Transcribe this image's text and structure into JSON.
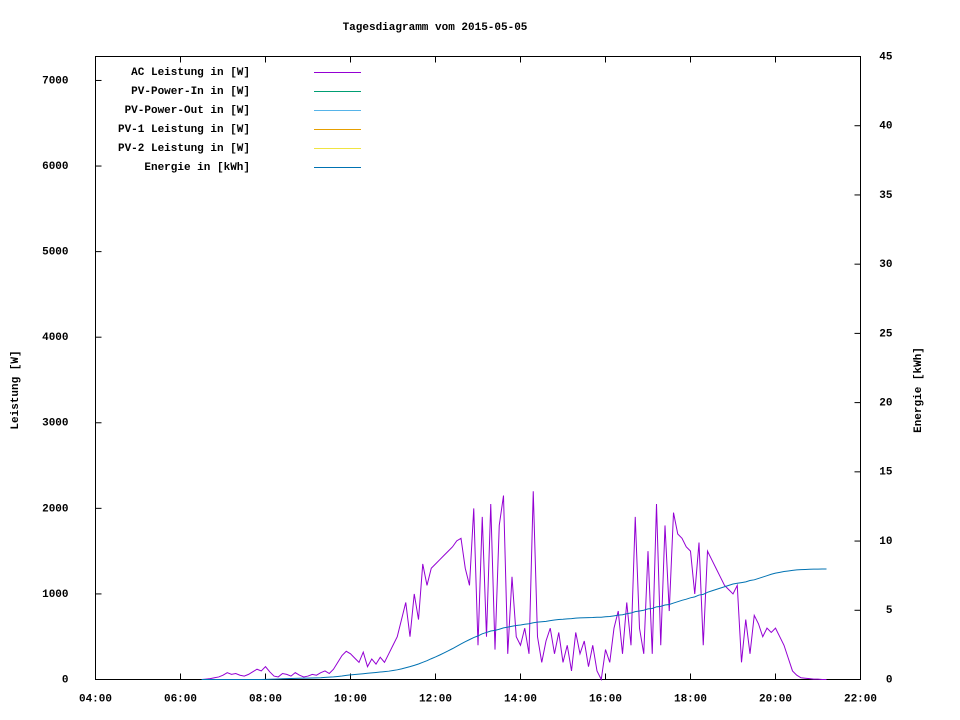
{
  "chart_data": {
    "type": "line",
    "title": "Tagesdiagramm vom 2015-05-05",
    "ylabel": "Leistung [W]",
    "y2label": "Energie [kWh]",
    "xlim": [
      4,
      22
    ],
    "xticks": [
      {
        "value": 4,
        "label": "04:00"
      },
      {
        "value": 6,
        "label": "06:00"
      },
      {
        "value": 8,
        "label": "08:00"
      },
      {
        "value": 10,
        "label": "10:00"
      },
      {
        "value": 12,
        "label": "12:00"
      },
      {
        "value": 14,
        "label": "14:00"
      },
      {
        "value": 16,
        "label": "16:00"
      },
      {
        "value": 18,
        "label": "18:00"
      },
      {
        "value": 20,
        "label": "20:00"
      },
      {
        "value": 22,
        "label": "22:00"
      }
    ],
    "ylim": [
      0,
      7280
    ],
    "yticks": [
      0,
      1000,
      2000,
      3000,
      4000,
      5000,
      6000,
      7000
    ],
    "y2lim": [
      0,
      45
    ],
    "y2ticks": [
      0,
      5,
      10,
      15,
      20,
      25,
      30,
      35,
      40,
      45
    ],
    "legend": "top-left",
    "x": [
      6.5,
      6.6,
      6.7,
      6.8,
      6.9,
      7.0,
      7.1,
      7.2,
      7.3,
      7.4,
      7.5,
      7.6,
      7.7,
      7.8,
      7.9,
      8.0,
      8.1,
      8.2,
      8.3,
      8.4,
      8.5,
      8.6,
      8.7,
      8.8,
      8.9,
      9.0,
      9.1,
      9.2,
      9.3,
      9.4,
      9.5,
      9.6,
      9.7,
      9.8,
      9.9,
      10.0,
      10.1,
      10.2,
      10.3,
      10.4,
      10.5,
      10.6,
      10.7,
      10.8,
      10.9,
      11.0,
      11.1,
      11.2,
      11.3,
      11.4,
      11.5,
      11.6,
      11.7,
      11.8,
      11.9,
      12.0,
      12.1,
      12.2,
      12.3,
      12.4,
      12.5,
      12.6,
      12.7,
      12.8,
      12.9,
      13.0,
      13.1,
      13.2,
      13.3,
      13.4,
      13.5,
      13.6,
      13.7,
      13.8,
      13.9,
      14.0,
      14.1,
      14.2,
      14.3,
      14.4,
      14.5,
      14.6,
      14.7,
      14.8,
      14.9,
      15.0,
      15.1,
      15.2,
      15.3,
      15.4,
      15.5,
      15.6,
      15.7,
      15.8,
      15.9,
      16.0,
      16.1,
      16.2,
      16.3,
      16.4,
      16.5,
      16.6,
      16.7,
      16.8,
      16.9,
      17.0,
      17.1,
      17.2,
      17.3,
      17.4,
      17.5,
      17.6,
      17.7,
      17.8,
      17.9,
      18.0,
      18.1,
      18.2,
      18.3,
      18.4,
      18.5,
      18.6,
      18.7,
      18.8,
      18.9,
      19.0,
      19.1,
      19.2,
      19.3,
      19.4,
      19.5,
      19.6,
      19.7,
      19.8,
      19.9,
      20.0,
      20.1,
      20.2,
      20.3,
      20.4,
      20.5,
      20.6,
      20.7,
      20.8,
      20.9,
      21.0,
      21.1,
      21.2
    ],
    "series": [
      {
        "name": "AC Leistung in [W]",
        "color": "#9400d3",
        "values": [
          0,
          5,
          10,
          20,
          30,
          50,
          80,
          60,
          70,
          50,
          40,
          60,
          90,
          120,
          100,
          150,
          90,
          40,
          30,
          70,
          60,
          40,
          80,
          50,
          30,
          40,
          60,
          50,
          80,
          100,
          70,
          120,
          200,
          280,
          330,
          300,
          250,
          200,
          320,
          150,
          240,
          180,
          260,
          200,
          300,
          400,
          500,
          700,
          900,
          500,
          1000,
          700,
          1350,
          1100,
          1300,
          1350,
          1400,
          1450,
          1500,
          1550,
          1620,
          1650,
          1300,
          1100,
          2000,
          400,
          1900,
          500,
          2050,
          350,
          1800,
          2150,
          300,
          1200,
          500,
          400,
          600,
          300,
          2200,
          500,
          200,
          450,
          600,
          300,
          550,
          200,
          400,
          100,
          550,
          300,
          450,
          150,
          400,
          100,
          0,
          350,
          200,
          600,
          800,
          300,
          900,
          400,
          1900,
          600,
          300,
          1500,
          300,
          2050,
          400,
          1800,
          800,
          1950,
          1700,
          1650,
          1550,
          1500,
          1000,
          1600,
          400,
          1500,
          1400,
          1300,
          1200,
          1100,
          1050,
          1000,
          1100,
          200,
          700,
          300,
          750,
          650,
          500,
          600,
          550,
          600,
          500,
          400,
          250,
          100,
          50,
          20,
          15,
          10,
          5,
          5,
          0,
          0
        ]
      },
      {
        "name": "PV-Power-In in [W]",
        "color": "#009e73",
        "values": [
          null,
          null,
          null,
          null,
          null,
          null,
          null,
          null,
          null,
          null,
          null,
          null,
          null,
          null,
          null,
          null,
          null,
          null,
          null,
          null,
          null,
          null,
          null,
          null,
          null,
          null,
          null,
          null,
          null,
          null,
          null,
          null,
          null,
          null,
          null,
          null,
          null,
          null,
          null,
          null,
          null,
          null,
          null,
          null,
          null,
          null,
          null,
          null,
          null,
          null,
          null,
          null,
          null,
          null,
          null,
          null,
          null,
          null,
          null,
          null,
          null,
          null,
          null,
          null,
          null,
          null,
          null,
          null,
          null,
          null,
          null,
          null,
          null,
          null,
          null,
          null,
          null,
          null,
          null,
          null,
          null,
          null,
          null,
          null,
          null,
          null,
          null,
          null,
          null,
          null,
          null,
          null,
          null,
          null,
          null,
          null,
          null,
          null,
          null,
          null,
          null,
          null,
          null,
          null,
          null,
          null,
          null,
          null,
          null,
          null,
          null,
          null,
          null,
          null,
          null,
          null,
          null,
          null,
          null,
          null,
          null,
          null,
          null,
          null,
          null,
          null,
          null,
          null,
          null,
          null,
          null,
          null,
          null,
          null,
          null,
          null,
          null,
          null,
          null,
          null,
          null,
          null,
          null,
          null,
          null,
          null,
          null,
          null
        ]
      },
      {
        "name": "PV-Power-Out in [W]",
        "color": "#56b4e9",
        "values": [
          null,
          null,
          null,
          null,
          null,
          null,
          null,
          null,
          null,
          null,
          null,
          null,
          null,
          null,
          null,
          null,
          null,
          null,
          null,
          null,
          null,
          null,
          null,
          null,
          null,
          null,
          null,
          null,
          null,
          null,
          null,
          null,
          null,
          null,
          null,
          null,
          null,
          null,
          null,
          null,
          null,
          null,
          null,
          null,
          null,
          null,
          null,
          null,
          null,
          null,
          null,
          null,
          null,
          null,
          null,
          null,
          null,
          null,
          null,
          null,
          null,
          null,
          null,
          null,
          null,
          null,
          null,
          null,
          null,
          null,
          null,
          null,
          null,
          null,
          null,
          null,
          null,
          null,
          null,
          null,
          null,
          null,
          null,
          null,
          null,
          null,
          null,
          null,
          null,
          null,
          null,
          null,
          null,
          null,
          null,
          null,
          null,
          null,
          null,
          null,
          null,
          null,
          null,
          null,
          null,
          null,
          null,
          null,
          null,
          null,
          null,
          null,
          null,
          null,
          null,
          null,
          null,
          null,
          null,
          null,
          null,
          null,
          null,
          null,
          null,
          null,
          null,
          null,
          null,
          null,
          null,
          null,
          null,
          null,
          null,
          null,
          null,
          null,
          null,
          null,
          null,
          null,
          null,
          null,
          null,
          null,
          null,
          null
        ]
      },
      {
        "name": "PV-1 Leistung in [W]",
        "color": "#e69f00",
        "values": [
          null,
          null,
          null,
          null,
          null,
          null,
          null,
          null,
          null,
          null,
          null,
          null,
          null,
          null,
          null,
          null,
          null,
          null,
          null,
          null,
          null,
          null,
          null,
          null,
          null,
          null,
          null,
          null,
          null,
          null,
          null,
          null,
          null,
          null,
          null,
          null,
          null,
          null,
          null,
          null,
          null,
          null,
          null,
          null,
          null,
          null,
          null,
          null,
          null,
          null,
          null,
          null,
          null,
          null,
          null,
          null,
          null,
          null,
          null,
          null,
          null,
          null,
          null,
          null,
          null,
          null,
          null,
          null,
          null,
          null,
          null,
          null,
          null,
          null,
          null,
          null,
          null,
          null,
          null,
          null,
          null,
          null,
          null,
          null,
          null,
          null,
          null,
          null,
          null,
          null,
          null,
          null,
          null,
          null,
          null,
          null,
          null,
          null,
          null,
          null,
          null,
          null,
          null,
          null,
          null,
          null,
          null,
          null,
          null,
          null,
          null,
          null,
          null,
          null,
          null,
          null,
          null,
          null,
          null,
          null,
          null,
          null,
          null,
          null,
          null,
          null,
          null,
          null,
          null,
          null,
          null,
          null,
          null,
          null,
          null,
          null,
          null,
          null,
          null,
          null,
          null,
          null,
          null,
          null,
          null,
          null,
          null,
          null
        ]
      },
      {
        "name": "PV-2 Leistung in [W]",
        "color": "#f0e442",
        "values": [
          null,
          null,
          null,
          null,
          null,
          null,
          null,
          null,
          null,
          null,
          null,
          null,
          null,
          null,
          null,
          null,
          null,
          null,
          null,
          null,
          null,
          null,
          null,
          null,
          null,
          null,
          null,
          null,
          null,
          null,
          null,
          null,
          null,
          null,
          null,
          null,
          null,
          null,
          null,
          null,
          null,
          null,
          null,
          null,
          null,
          null,
          null,
          null,
          null,
          null,
          null,
          null,
          null,
          null,
          null,
          null,
          null,
          null,
          null,
          null,
          null,
          null,
          null,
          null,
          null,
          null,
          null,
          null,
          null,
          null,
          null,
          null,
          null,
          null,
          null,
          null,
          null,
          null,
          null,
          null,
          null,
          null,
          null,
          null,
          null,
          null,
          null,
          null,
          null,
          null,
          null,
          null,
          null,
          null,
          null,
          null,
          null,
          null,
          null,
          null,
          null,
          null,
          null,
          null,
          null,
          null,
          null,
          null,
          null,
          null,
          null,
          null,
          null,
          null,
          null,
          null,
          null,
          null,
          null,
          null,
          null,
          null,
          null,
          null,
          null,
          null,
          null,
          null,
          null,
          null,
          null,
          null,
          null,
          null,
          null,
          null,
          null,
          null,
          null,
          null,
          null,
          null,
          null,
          null,
          null,
          null,
          null,
          null
        ]
      },
      {
        "name": "Energie in [kWh]",
        "color": "#0072b2",
        "axis": "y2",
        "values": [
          0,
          0,
          0,
          0,
          0,
          0,
          0,
          0,
          0,
          0,
          0,
          0,
          0,
          0,
          0,
          0.01,
          0.02,
          0.03,
          0.04,
          0.05,
          0.06,
          0.07,
          0.08,
          0.09,
          0.1,
          0.1,
          0.11,
          0.12,
          0.13,
          0.15,
          0.17,
          0.19,
          0.22,
          0.25,
          0.3,
          0.33,
          0.36,
          0.39,
          0.42,
          0.45,
          0.48,
          0.51,
          0.54,
          0.57,
          0.6,
          0.65,
          0.7,
          0.77,
          0.85,
          0.93,
          1.02,
          1.12,
          1.24,
          1.36,
          1.5,
          1.63,
          1.77,
          1.92,
          2.07,
          2.23,
          2.4,
          2.57,
          2.73,
          2.88,
          3.03,
          3.15,
          3.3,
          3.4,
          3.5,
          3.55,
          3.63,
          3.73,
          3.78,
          3.85,
          3.9,
          3.94,
          3.99,
          4.03,
          4.1,
          4.14,
          4.17,
          4.2,
          4.25,
          4.3,
          4.33,
          4.35,
          4.38,
          4.4,
          4.43,
          4.45,
          4.46,
          4.47,
          4.48,
          4.5,
          4.5,
          4.53,
          4.55,
          4.6,
          4.65,
          4.68,
          4.75,
          4.8,
          4.9,
          4.95,
          5.0,
          5.1,
          5.13,
          5.25,
          5.28,
          5.38,
          5.42,
          5.52,
          5.62,
          5.72,
          5.8,
          5.9,
          5.97,
          6.1,
          6.15,
          6.3,
          6.4,
          6.5,
          6.6,
          6.7,
          6.8,
          6.9,
          6.95,
          7.0,
          7.05,
          7.15,
          7.2,
          7.3,
          7.4,
          7.5,
          7.6,
          7.68,
          7.74,
          7.8,
          7.84,
          7.88,
          7.92,
          7.94,
          7.95,
          7.96,
          7.97,
          7.97,
          7.98,
          7.98
        ]
      }
    ]
  }
}
